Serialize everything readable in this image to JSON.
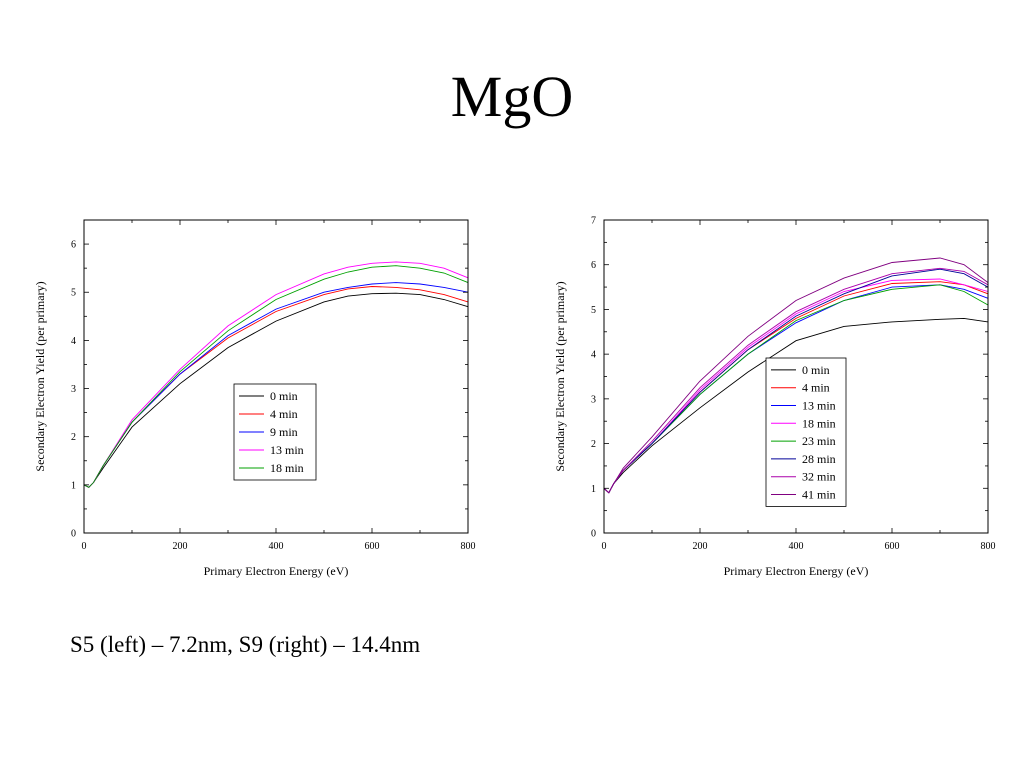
{
  "slide": {
    "title": "MgO",
    "caption": "S5 (left) – 7.2nm, S9 (right) – 14.4nm"
  },
  "chart_data": [
    {
      "type": "line",
      "xlabel": "Primary Electron Energy (eV)",
      "ylabel": "Secondary Electron Yield (per primary)",
      "xlim": [
        0,
        800
      ],
      "ylim": [
        0,
        6.5
      ],
      "xticks": [
        0,
        200,
        400,
        600,
        800
      ],
      "yticks": [
        0,
        1,
        2,
        3,
        4,
        5,
        6
      ],
      "grid": false,
      "legend_position": "center",
      "series": [
        {
          "name": "0 min",
          "color": "#000000",
          "x": [
            0,
            10,
            20,
            40,
            100,
            200,
            300,
            400,
            500,
            550,
            600,
            650,
            700,
            750,
            800
          ],
          "y": [
            1.0,
            0.95,
            1.05,
            1.35,
            2.2,
            3.1,
            3.85,
            4.4,
            4.8,
            4.92,
            4.97,
            4.98,
            4.95,
            4.85,
            4.7
          ]
        },
        {
          "name": "4 min",
          "color": "#ff0000",
          "x": [
            0,
            10,
            20,
            40,
            100,
            200,
            300,
            400,
            500,
            550,
            600,
            650,
            700,
            750,
            800
          ],
          "y": [
            1.0,
            0.95,
            1.05,
            1.4,
            2.3,
            3.3,
            4.05,
            4.6,
            4.95,
            5.07,
            5.12,
            5.1,
            5.05,
            4.95,
            4.8
          ]
        },
        {
          "name": "9 min",
          "color": "#0000ff",
          "x": [
            0,
            10,
            20,
            40,
            100,
            200,
            300,
            400,
            500,
            550,
            600,
            650,
            700,
            750,
            800
          ],
          "y": [
            1.0,
            0.95,
            1.05,
            1.4,
            2.3,
            3.3,
            4.1,
            4.65,
            5.0,
            5.1,
            5.17,
            5.2,
            5.17,
            5.1,
            5.0
          ]
        },
        {
          "name": "13 min",
          "color": "#ff00ff",
          "x": [
            0,
            10,
            20,
            40,
            100,
            200,
            300,
            400,
            500,
            550,
            600,
            650,
            700,
            750,
            800
          ],
          "y": [
            1.0,
            0.95,
            1.05,
            1.4,
            2.35,
            3.4,
            4.3,
            4.95,
            5.38,
            5.52,
            5.6,
            5.63,
            5.6,
            5.5,
            5.3
          ]
        },
        {
          "name": "18 min",
          "color": "#00a000",
          "x": [
            0,
            10,
            20,
            40,
            100,
            200,
            300,
            400,
            500,
            550,
            600,
            650,
            700,
            750,
            800
          ],
          "y": [
            1.0,
            0.95,
            1.05,
            1.4,
            2.3,
            3.35,
            4.2,
            4.85,
            5.27,
            5.42,
            5.52,
            5.55,
            5.5,
            5.4,
            5.2
          ]
        }
      ]
    },
    {
      "type": "line",
      "xlabel": "Primary Electron Energy (eV)",
      "ylabel": "Secondary Electron Yield (per primary)",
      "xlim": [
        0,
        800
      ],
      "ylim": [
        0,
        7
      ],
      "xticks": [
        0,
        200,
        400,
        600,
        800
      ],
      "yticks": [
        0,
        1,
        2,
        3,
        4,
        5,
        6,
        7
      ],
      "grid": false,
      "legend_position": "lower center",
      "series": [
        {
          "name": "0 min",
          "color": "#000000",
          "x": [
            0,
            10,
            20,
            40,
            100,
            200,
            300,
            400,
            500,
            600,
            700,
            750,
            800
          ],
          "y": [
            1.0,
            0.9,
            1.1,
            1.35,
            1.95,
            2.8,
            3.6,
            4.3,
            4.62,
            4.72,
            4.78,
            4.8,
            4.72
          ]
        },
        {
          "name": "4 min",
          "color": "#ff0000",
          "x": [
            0,
            10,
            20,
            40,
            100,
            200,
            300,
            400,
            500,
            600,
            700,
            750,
            800
          ],
          "y": [
            1.0,
            0.9,
            1.1,
            1.4,
            2.0,
            3.15,
            4.1,
            4.8,
            5.3,
            5.58,
            5.62,
            5.55,
            5.35
          ]
        },
        {
          "name": "13 min",
          "color": "#0000ff",
          "x": [
            0,
            10,
            20,
            40,
            100,
            200,
            300,
            400,
            500,
            600,
            700,
            750,
            800
          ],
          "y": [
            1.0,
            0.9,
            1.1,
            1.4,
            2.0,
            3.1,
            4.0,
            4.7,
            5.2,
            5.5,
            5.55,
            5.45,
            5.25
          ]
        },
        {
          "name": "18 min",
          "color": "#ff00ff",
          "x": [
            0,
            10,
            20,
            40,
            100,
            200,
            300,
            400,
            500,
            600,
            700,
            750,
            800
          ],
          "y": [
            1.0,
            0.9,
            1.1,
            1.4,
            2.0,
            3.2,
            4.15,
            4.9,
            5.4,
            5.65,
            5.68,
            5.55,
            5.4
          ]
        },
        {
          "name": "23 min",
          "color": "#00a000",
          "x": [
            0,
            10,
            20,
            40,
            100,
            200,
            300,
            400,
            500,
            600,
            700,
            750,
            800
          ],
          "y": [
            1.0,
            0.9,
            1.1,
            1.4,
            2.0,
            3.1,
            4.0,
            4.75,
            5.2,
            5.45,
            5.55,
            5.4,
            5.1
          ]
        },
        {
          "name": "28 min",
          "color": "#000099",
          "x": [
            0,
            10,
            20,
            40,
            100,
            200,
            300,
            400,
            500,
            600,
            700,
            750,
            800
          ],
          "y": [
            1.0,
            0.9,
            1.1,
            1.4,
            2.0,
            3.15,
            4.1,
            4.85,
            5.35,
            5.75,
            5.9,
            5.8,
            5.5
          ]
        },
        {
          "name": "32 min",
          "color": "#aa00aa",
          "x": [
            0,
            10,
            20,
            40,
            100,
            200,
            300,
            400,
            500,
            600,
            700,
            750,
            800
          ],
          "y": [
            1.0,
            0.9,
            1.1,
            1.4,
            2.05,
            3.25,
            4.2,
            4.95,
            5.45,
            5.8,
            5.92,
            5.85,
            5.55
          ]
        },
        {
          "name": "41 min",
          "color": "#800080",
          "x": [
            0,
            10,
            20,
            40,
            100,
            200,
            300,
            400,
            500,
            600,
            700,
            750,
            800
          ],
          "y": [
            1.0,
            0.9,
            1.1,
            1.45,
            2.15,
            3.4,
            4.4,
            5.2,
            5.7,
            6.05,
            6.15,
            6.0,
            5.6
          ]
        }
      ]
    }
  ]
}
